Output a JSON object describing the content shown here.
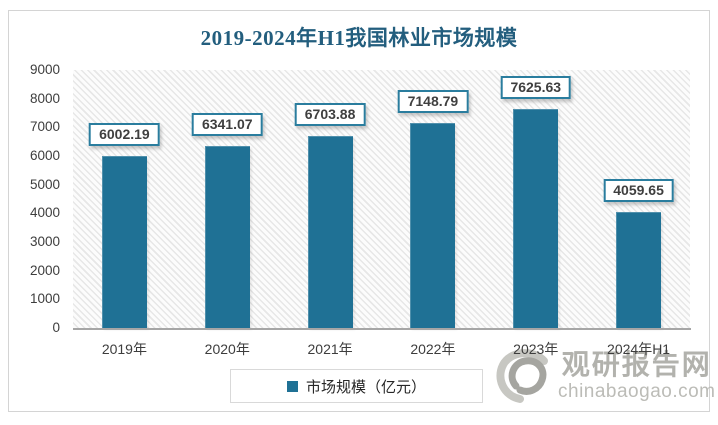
{
  "chart_data": {
    "type": "bar",
    "title": "2019-2024年H1我国林业市场规模",
    "categories": [
      "2019年",
      "2020年",
      "2021年",
      "2022年",
      "2023年",
      "2024年H1"
    ],
    "series": [
      {
        "name": "市场规模（亿元）",
        "values": [
          6002.19,
          6341.07,
          6703.88,
          7148.79,
          7625.63,
          4059.65
        ]
      }
    ],
    "data_labels": [
      "6002.19",
      "6341.07",
      "6703.88",
      "7148.79",
      "7625.63",
      "4059.65"
    ],
    "xlabel": "",
    "ylabel": "",
    "ylim": [
      0,
      9000
    ],
    "ytick_step": 1000,
    "ytick_labels": [
      "0",
      "1000",
      "2000",
      "3000",
      "4000",
      "5000",
      "6000",
      "7000",
      "8000",
      "9000"
    ],
    "grid": false,
    "legend_position": "bottom",
    "plot_background": "light-diagonal-hatch"
  },
  "legend": {
    "label": "市场规模（亿元）"
  },
  "watermark": {
    "logo": "swirl-logo",
    "name": "观研报告网",
    "domain": "chinabaogao.com"
  },
  "colors": {
    "bar": "#1f7195",
    "title": "#235e7e",
    "label_box_border": "#2a7d9e",
    "axis_line": "#a6a6a6",
    "tick_text": "#3d3d3d",
    "frame_border": "#d4d4d4",
    "watermark_gray": "#b2b2ad"
  }
}
